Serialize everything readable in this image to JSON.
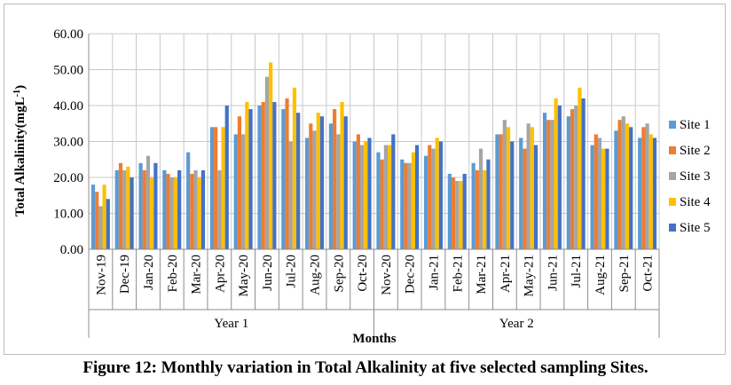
{
  "caption": "Figure 12: Monthly variation in Total Alkalinity at five selected sampling Sites.",
  "chart_data": {
    "type": "bar",
    "ylabel_main": "Total Alkalinity(mgL",
    "ylabel_sup": "-1",
    "ylabel_close": ")",
    "xlabel": "Months",
    "ylim": [
      0,
      60
    ],
    "yticks": [
      "0.00",
      "10.00",
      "20.00",
      "30.00",
      "40.00",
      "50.00",
      "60.00"
    ],
    "grid": true,
    "legend_position": "right",
    "groups": [
      {
        "label": "Year 1",
        "count": 12
      },
      {
        "label": "Year 2",
        "count": 12
      }
    ],
    "categories": [
      "Nov-19",
      "Dec-19",
      "Jan-20",
      "Feb-20",
      "Mar-20",
      "Apr-20",
      "May-20",
      "Jun-20",
      "Jul-20",
      "Aug-20",
      "Sep-20",
      "Oct-20",
      "Nov-20",
      "Dec-20",
      "Jan-21",
      "Feb-21",
      "Mar-21",
      "Apr-21",
      "May-21",
      "Jun-21",
      "Jul-21",
      "Aug-21",
      "Sep-21",
      "Oct-21"
    ],
    "series": [
      {
        "name": "Site 1",
        "color": "#5b9bd5",
        "values": [
          18,
          22,
          24,
          22,
          27,
          34,
          32,
          40,
          39,
          31,
          35,
          30,
          27,
          25,
          26,
          21,
          24,
          32,
          31,
          38,
          37,
          29,
          33,
          31
        ]
      },
      {
        "name": "Site 2",
        "color": "#ed7d31",
        "values": [
          16,
          24,
          22,
          21,
          21,
          34,
          37,
          41,
          42,
          35,
          39,
          32,
          25,
          24,
          29,
          20,
          22,
          32,
          28,
          36,
          39,
          32,
          36,
          34
        ]
      },
      {
        "name": "Site 3",
        "color": "#a5a5a5",
        "values": [
          12,
          22,
          26,
          20,
          22,
          22,
          32,
          48,
          30,
          33,
          32,
          29,
          29,
          24,
          28,
          19,
          28,
          36,
          35,
          36,
          40,
          31,
          37,
          35
        ]
      },
      {
        "name": "Site 4",
        "color": "#ffc000",
        "values": [
          18,
          23,
          20,
          20,
          20,
          34,
          41,
          52,
          45,
          38,
          41,
          30,
          29,
          27,
          31,
          19,
          22,
          34,
          34,
          42,
          45,
          28,
          35,
          32
        ]
      },
      {
        "name": "Site 5",
        "color": "#4472c4",
        "values": [
          14,
          20,
          24,
          22,
          22,
          40,
          39,
          41,
          38,
          37,
          37,
          31,
          32,
          29,
          30,
          21,
          25,
          30,
          29,
          40,
          42,
          28,
          34,
          31
        ]
      }
    ]
  }
}
